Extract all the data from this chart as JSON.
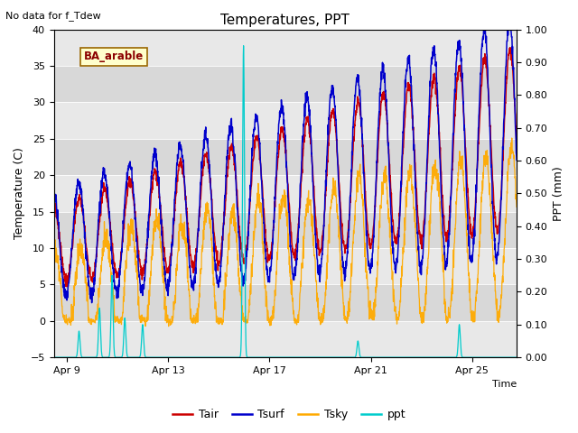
{
  "title": "Temperatures, PPT",
  "subtitle": "No data for f_Tdew",
  "location_label": "BA_arable",
  "xlabel": "Time",
  "ylabel_left": "Temperature (C)",
  "ylabel_right": "PPT (mm)",
  "x_tick_labels": [
    "Apr 9",
    "Apr 13",
    "Apr 17",
    "Apr 21",
    "Apr 25"
  ],
  "ylim_left": [
    -5,
    40
  ],
  "ylim_right": [
    0.0,
    1.0
  ],
  "yticks_left": [
    -5,
    0,
    5,
    10,
    15,
    20,
    25,
    30,
    35,
    40
  ],
  "yticks_right": [
    0.0,
    0.1,
    0.2,
    0.3,
    0.4,
    0.5,
    0.6,
    0.7,
    0.8,
    0.9,
    1.0
  ],
  "color_tair": "#cc0000",
  "color_tsurf": "#0000cc",
  "color_tsky": "#ffaa00",
  "color_ppt": "#00cccc",
  "bg_outer": "#f0f0f0",
  "band_colors": [
    "#e8e8e8",
    "#d8d8d8"
  ],
  "legend_entries": [
    "Tair",
    "Tsurf",
    "Tsky",
    "ppt"
  ],
  "n_points": 2000,
  "total_days": 19
}
